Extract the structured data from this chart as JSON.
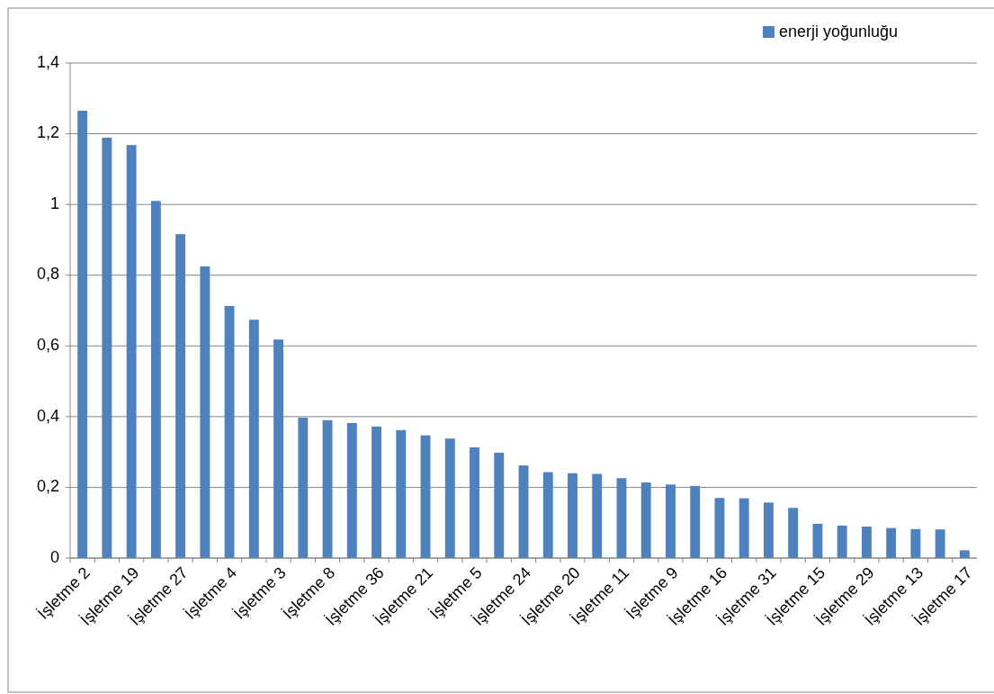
{
  "chart_data": {
    "type": "bar",
    "categories": [
      "İşletme 2",
      null,
      "İşletme 19",
      null,
      "İşletme 27",
      null,
      "İşletme 4",
      null,
      "İşletme 3",
      null,
      "İşletme 8",
      null,
      "İşletme 36",
      null,
      "İşletme 21",
      null,
      "İşletme 5",
      null,
      "İşletme 24",
      null,
      "İşletme 20",
      null,
      "İşletme 11",
      null,
      "İşletme 9",
      null,
      "İşletme 16",
      null,
      "İşletme 31",
      null,
      "İşletme 15",
      null,
      "İşletme 29",
      null,
      "İşletme 13",
      null,
      "İşletme 17"
    ],
    "series": [
      {
        "name": "enerji yoğunluğu",
        "color": "#4f81bd",
        "values": [
          1.265,
          1.189,
          1.168,
          1.01,
          0.916,
          0.825,
          0.713,
          0.674,
          0.618,
          0.397,
          0.39,
          0.382,
          0.372,
          0.362,
          0.347,
          0.338,
          0.313,
          0.298,
          0.262,
          0.243,
          0.24,
          0.238,
          0.226,
          0.214,
          0.208,
          0.204,
          0.17,
          0.169,
          0.157,
          0.142,
          0.097,
          0.092,
          0.089,
          0.085,
          0.082,
          0.081,
          0.022
        ]
      }
    ],
    "ylim": [
      0,
      1.4
    ],
    "yticks": [
      0,
      {
        "value": 0.2,
        "label": "0,2"
      },
      {
        "value": 0.4,
        "label": "0,4"
      },
      {
        "value": 0.6,
        "label": "0,6"
      },
      {
        "value": 0.8,
        "label": "0,8"
      },
      1,
      {
        "value": 1.2,
        "label": "1,2"
      },
      {
        "value": 1.4,
        "label": "1,4"
      }
    ],
    "grid": "y",
    "legend": "top right"
  }
}
